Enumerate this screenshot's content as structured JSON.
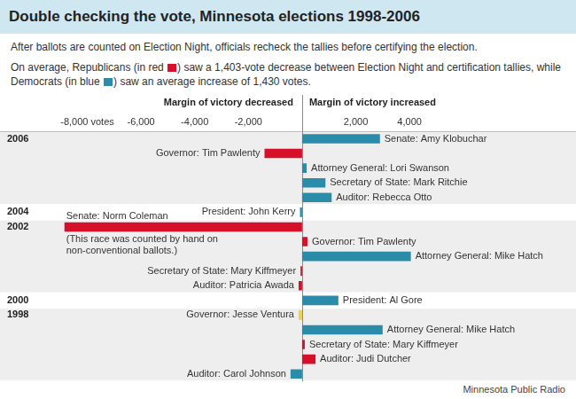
{
  "chart_data": {
    "type": "bar",
    "orientation": "horizontal",
    "title": "Double checking the vote, Minnesota elections 1998-2006",
    "subtitle": "After ballots are counted on Election Night, officials recheck the tallies before certifying the election.",
    "note_parts": [
      "On average, Republicans (in red ",
      ") saw a 1,403-vote decrease between Election Night and certification tallies, while Democrats (in blue ",
      ") saw an average increase of 1,430 votes."
    ],
    "axis_labels": {
      "decreased": "Margin of victory decreased",
      "increased": "Margin of victory increased"
    },
    "source": "Minnesota Public Radio",
    "categories": [
      "Senate: Amy Klobuchar",
      "Governor: Tim Pawlenty",
      "Attorney General: Lori Swanson",
      "Secretary of State: Mark Ritchie",
      "Auditor: Rebecca Otto",
      "President: John Kerry",
      "Senate: Norm Coleman",
      "Governor: Tim Pawlenty",
      "Attorney General: Mike Hatch",
      "Secretary of State: Mary Kiffmeyer",
      "Auditor: Patricia Awada",
      "President: Al Gore",
      "Governor: Jesse Ventura",
      "Attorney General: Mike Hatch",
      "Secretary of State: Mary Kiffmeyer",
      "Auditor: Judi Dutcher",
      "Auditor: Carol Johnson"
    ],
    "years": [
      "2006",
      null,
      null,
      null,
      null,
      "2004",
      "2002",
      null,
      null,
      null,
      null,
      "2000",
      "1998",
      null,
      null,
      null,
      null
    ],
    "values": [
      2900,
      -1400,
      170,
      870,
      1100,
      -80,
      -8850,
      200,
      4050,
      -60,
      -130,
      1350,
      -130,
      3000,
      100,
      500,
      -430
    ],
    "colors": [
      "#2a8ca8",
      "#d7102a",
      "#2a8ca8",
      "#2a8ca8",
      "#2a8ca8",
      "#2a8ca8",
      "#d7102a",
      "#d7102a",
      "#2a8ca8",
      "#d7102a",
      "#d7102a",
      "#2a8ca8",
      "#ecd34a",
      "#2a8ca8",
      "#d7102a",
      "#d7102a",
      "#2a8ca8"
    ],
    "annotations": [
      {
        "category": "Senate: Norm Coleman",
        "text": "(This race was counted by hand on non-conventional ballots.)"
      }
    ],
    "xlim": [
      -11250,
      10200
    ],
    "xticks": [
      {
        "value": -8000,
        "label": "-8,000 votes"
      },
      {
        "value": -6000,
        "label": "-6,000"
      },
      {
        "value": -4000,
        "label": "-4,000"
      },
      {
        "value": -2000,
        "label": "-2,000"
      },
      {
        "value": 2000,
        "label": "2,000"
      },
      {
        "value": 4000,
        "label": "4,000"
      }
    ],
    "grid": false
  }
}
